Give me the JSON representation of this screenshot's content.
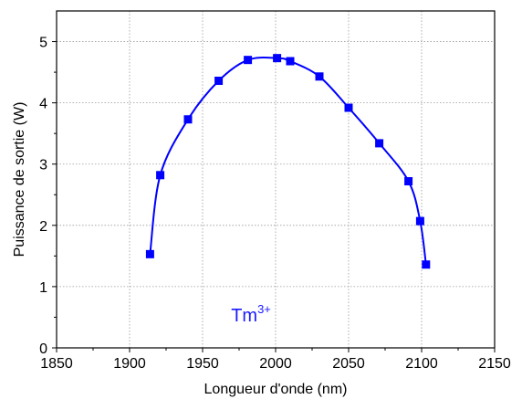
{
  "chart_data": {
    "type": "line",
    "title": "",
    "xlabel": "Longueur d'onde (nm)",
    "ylabel": "Puissance de sortie (W)",
    "xlim": [
      1850,
      2150
    ],
    "ylim": [
      0,
      5.5
    ],
    "xticks": [
      1850,
      1900,
      1950,
      2000,
      2050,
      2100,
      2150
    ],
    "yticks": [
      0,
      1,
      2,
      3,
      4,
      5
    ],
    "grid": true,
    "legend": "none",
    "series": [
      {
        "color": "#0000ff",
        "marker": "square",
        "x": [
          1914,
          1921,
          1940,
          1961,
          1981,
          2001,
          2010,
          2030,
          2050,
          2071,
          2091,
          2099,
          2103
        ],
        "y": [
          1.53,
          2.82,
          3.73,
          4.36,
          4.7,
          4.73,
          4.68,
          4.43,
          3.92,
          3.34,
          2.72,
          2.07,
          1.36
        ]
      }
    ],
    "annotation": {
      "text": "Tm",
      "superscript": "3+",
      "x": 1987,
      "y": 0.52,
      "color": "#1a1aff"
    }
  }
}
